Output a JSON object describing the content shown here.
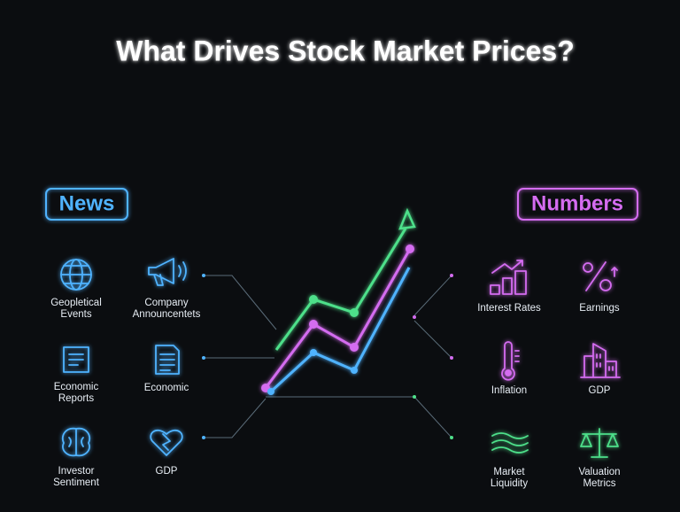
{
  "header": {
    "title": "What Drives Stock Market Prices?"
  },
  "news": {
    "label": "News",
    "items": [
      {
        "label": [
          "Geopletical",
          "Events"
        ]
      },
      {
        "label": [
          "Company",
          "Announcentets"
        ]
      },
      {
        "label": [
          "Economic",
          "Reports"
        ]
      },
      {
        "label": [
          "Economic"
        ]
      },
      {
        "label": [
          "Investor",
          "Sentiment"
        ]
      },
      {
        "label": [
          "GDP"
        ]
      }
    ]
  },
  "numbers": {
    "label": "Numbers",
    "items": [
      {
        "label": [
          "Interest Rates"
        ]
      },
      {
        "label": [
          "Earnings"
        ]
      },
      {
        "label": [
          "Inflation"
        ]
      },
      {
        "label": [
          "GDP"
        ]
      },
      {
        "label": [
          "Market",
          "Liquidity"
        ]
      },
      {
        "label": [
          "Valuation",
          "Metrics"
        ]
      }
    ]
  }
}
